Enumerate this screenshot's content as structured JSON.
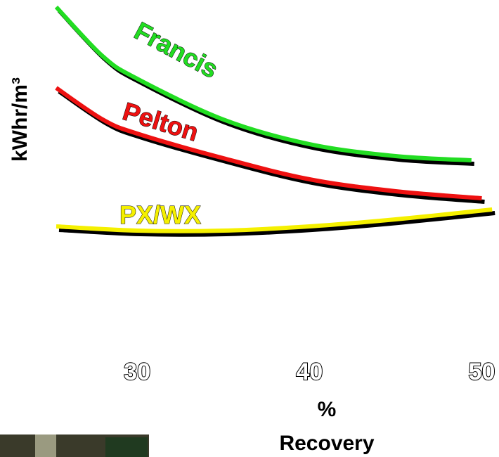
{
  "chart_data": {
    "type": "line",
    "y_label": "kWhr/m³",
    "x_label": [
      "%",
      "Recovery"
    ],
    "xlim": [
      25.3,
      51
    ],
    "xticks": [
      30,
      40,
      50
    ],
    "ylim": [
      0,
      10
    ],
    "series": [
      {
        "name": "Francis",
        "color": "#22dd22",
        "x": [
          25.3,
          28,
          30,
          35,
          40,
          45,
          49.4
        ],
        "values": [
          9.8,
          8.4,
          7.76,
          6.6,
          5.9,
          5.56,
          5.44
        ]
      },
      {
        "name": "Pelton",
        "color": "#ee1111",
        "x": [
          25.3,
          28,
          30,
          35,
          40,
          45,
          50
        ],
        "values": [
          7.5,
          6.6,
          6.2,
          5.5,
          4.9,
          4.56,
          4.36
        ]
      },
      {
        "name": "PX/WX",
        "color": "#f5f000",
        "x": [
          25.3,
          30,
          35,
          40,
          45,
          50.6
        ],
        "values": [
          3.56,
          3.44,
          3.44,
          3.56,
          3.76,
          4.04
        ]
      }
    ]
  }
}
